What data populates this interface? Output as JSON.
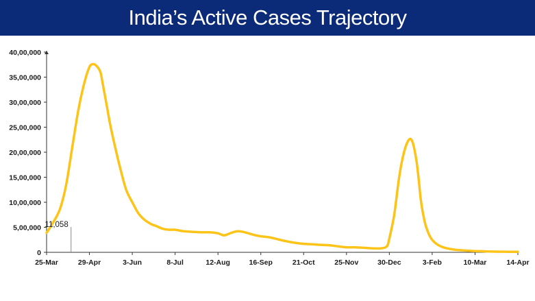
{
  "header": {
    "title": "India’s Active Cases Trajectory"
  },
  "colors": {
    "header_bg": "#0b2a78",
    "line": "#fcc418",
    "axis": "#333333"
  },
  "chart_data": {
    "type": "line",
    "title": "India’s Active Cases Trajectory",
    "xlabel": "",
    "ylabel": "",
    "ylim": [
      0,
      4000000
    ],
    "yticks": [
      0,
      500000,
      1000000,
      1500000,
      2000000,
      2500000,
      3000000,
      3500000,
      4000000
    ],
    "ytick_labels": [
      "0",
      "5,00,000",
      "10,00,000",
      "15,00,000",
      "20,00,000",
      "25,00,000",
      "30,00,000",
      "35,00,000",
      "40,00,000"
    ],
    "xtick_labels": [
      "25-Mar",
      "29-Apr",
      "3-Jun",
      "8-Jul",
      "12-Aug",
      "16-Sep",
      "21-Oct",
      "25-Nov",
      "30-Dec",
      "3-Feb",
      "10-Mar",
      "14-Apr"
    ],
    "grid": false,
    "legend": "none",
    "series": [
      {
        "x": [
          "25-Mar",
          "30-Mar",
          "5-Apr",
          "10-Apr",
          "15-Apr",
          "20-Apr",
          "25-Apr",
          "29-Apr",
          "2-May",
          "5-May",
          "8-May",
          "10-May",
          "13-May",
          "16-May",
          "20-May",
          "25-May",
          "29-May",
          "3-Jun",
          "8-Jun",
          "13-Jun",
          "18-Jun",
          "23-Jun",
          "28-Jun",
          "3-Jul",
          "8-Jul",
          "15-Jul",
          "22-Jul",
          "29-Jul",
          "5-Aug",
          "12-Aug",
          "17-Aug",
          "23-Aug",
          "28-Aug",
          "3-Sep",
          "10-Sep",
          "16-Sep",
          "23-Sep",
          "30-Sep",
          "7-Oct",
          "14-Oct",
          "21-Oct",
          "28-Oct",
          "4-Nov",
          "11-Nov",
          "18-Nov",
          "25-Nov",
          "2-Dec",
          "9-Dec",
          "16-Dec",
          "23-Dec",
          "28-Dec",
          "30-Dec",
          "3-Jan",
          "7-Jan",
          "11-Jan",
          "15-Jan",
          "18-Jan",
          "21-Jan",
          "23-Jan",
          "25-Jan",
          "28-Jan",
          "31-Jan",
          "3-Feb",
          "7-Feb",
          "12-Feb",
          "17-Feb",
          "22-Feb",
          "28-Feb",
          "5-Mar",
          "10-Mar",
          "17-Mar",
          "24-Mar",
          "31-Mar",
          "7-Apr",
          "14-Apr"
        ],
        "values": [
          390000,
          580000,
          870000,
          1350000,
          2100000,
          2850000,
          3400000,
          3700000,
          3760000,
          3720000,
          3600000,
          3350000,
          2950000,
          2550000,
          2100000,
          1600000,
          1250000,
          1000000,
          780000,
          650000,
          570000,
          520000,
          470000,
          450000,
          450000,
          420000,
          410000,
          400000,
          400000,
          380000,
          340000,
          390000,
          420000,
          400000,
          350000,
          320000,
          300000,
          260000,
          220000,
          190000,
          170000,
          160000,
          150000,
          140000,
          120000,
          100000,
          100000,
          90000,
          80000,
          80000,
          120000,
          280000,
          750000,
          1500000,
          2000000,
          2250000,
          2200000,
          1850000,
          1450000,
          1000000,
          600000,
          380000,
          250000,
          160000,
          100000,
          70000,
          50000,
          40000,
          30000,
          25000,
          20000,
          15000,
          12000,
          11500,
          11058
        ]
      }
    ],
    "annotations": [
      {
        "text": "11,058",
        "x": "14-Apr",
        "y": 11058
      }
    ]
  }
}
